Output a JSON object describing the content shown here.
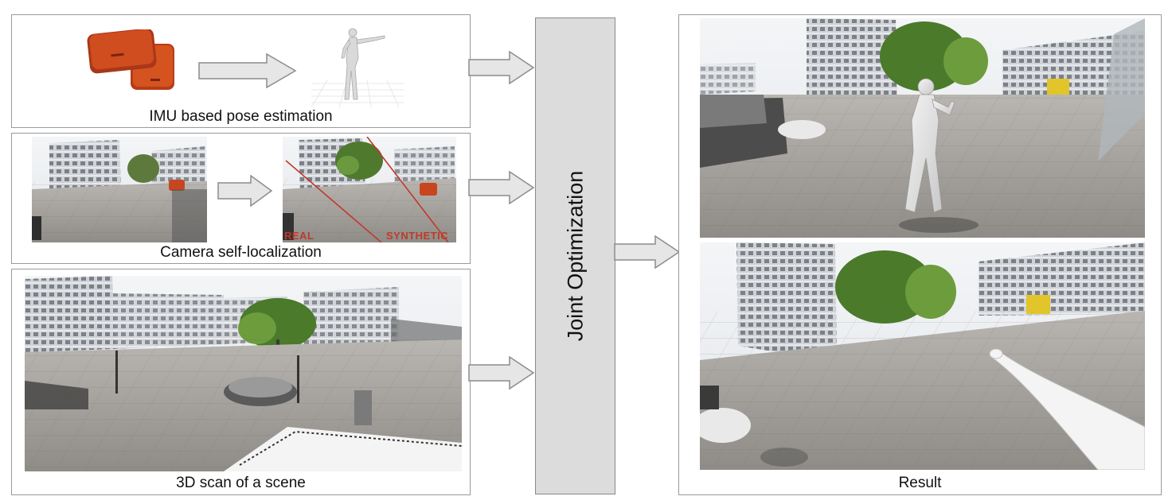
{
  "panels": {
    "imu": {
      "caption": "IMU based pose estimation"
    },
    "camera": {
      "caption": "Camera self-localization",
      "tag_real": "REAL",
      "tag_synthetic": "SYNTHETIC"
    },
    "scan": {
      "caption": "3D scan of a scene"
    },
    "result": {
      "caption": "Result"
    }
  },
  "joint": {
    "label": "Joint Optimization"
  },
  "colors": {
    "arrow_fill": "#e6e6e6",
    "arrow_stroke": "#8c8c8c",
    "sensor": "#c8461f",
    "panel_border": "#9a9a9a"
  }
}
